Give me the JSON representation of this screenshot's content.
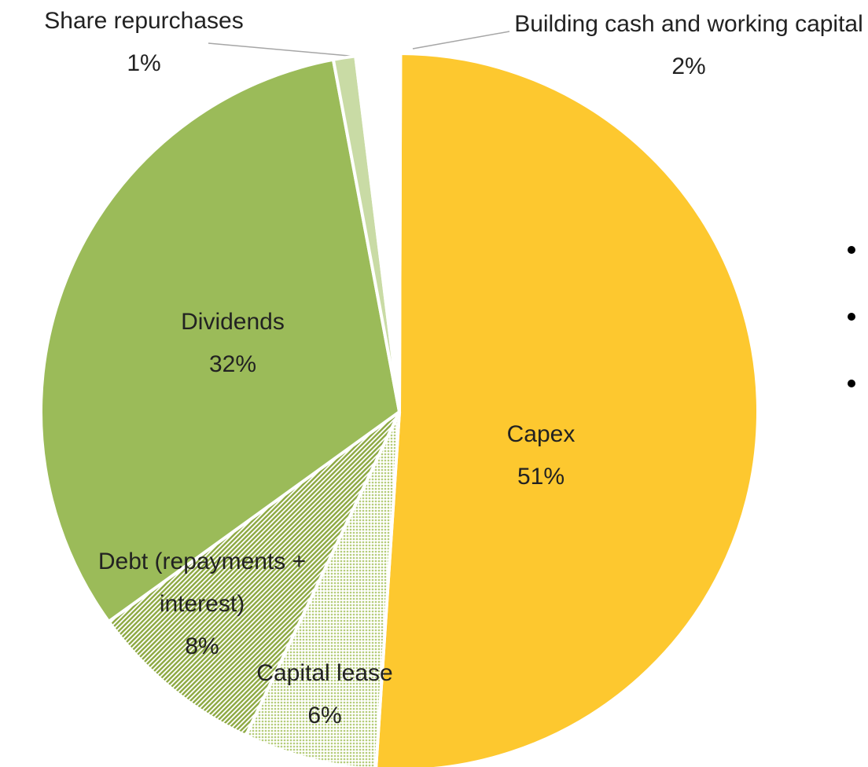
{
  "chart_data": {
    "type": "pie",
    "categories": [
      "Capex",
      "Capital lease",
      "Debt (repayments + interest)",
      "Dividends",
      "Share repurchases",
      "Building cash and working capital"
    ],
    "values": [
      51,
      6,
      8,
      32,
      1,
      2
    ],
    "value_labels": [
      "51%",
      "6%",
      "8%",
      "32%",
      "1%",
      "2%"
    ],
    "colors": [
      "#fdc82f",
      "#b5cc7a",
      "#8faa45",
      "#9bbb59",
      "#c9dba5",
      "#ffffff"
    ],
    "fill_patterns": [
      null,
      "dots",
      "hatch",
      null,
      null,
      null
    ]
  }
}
